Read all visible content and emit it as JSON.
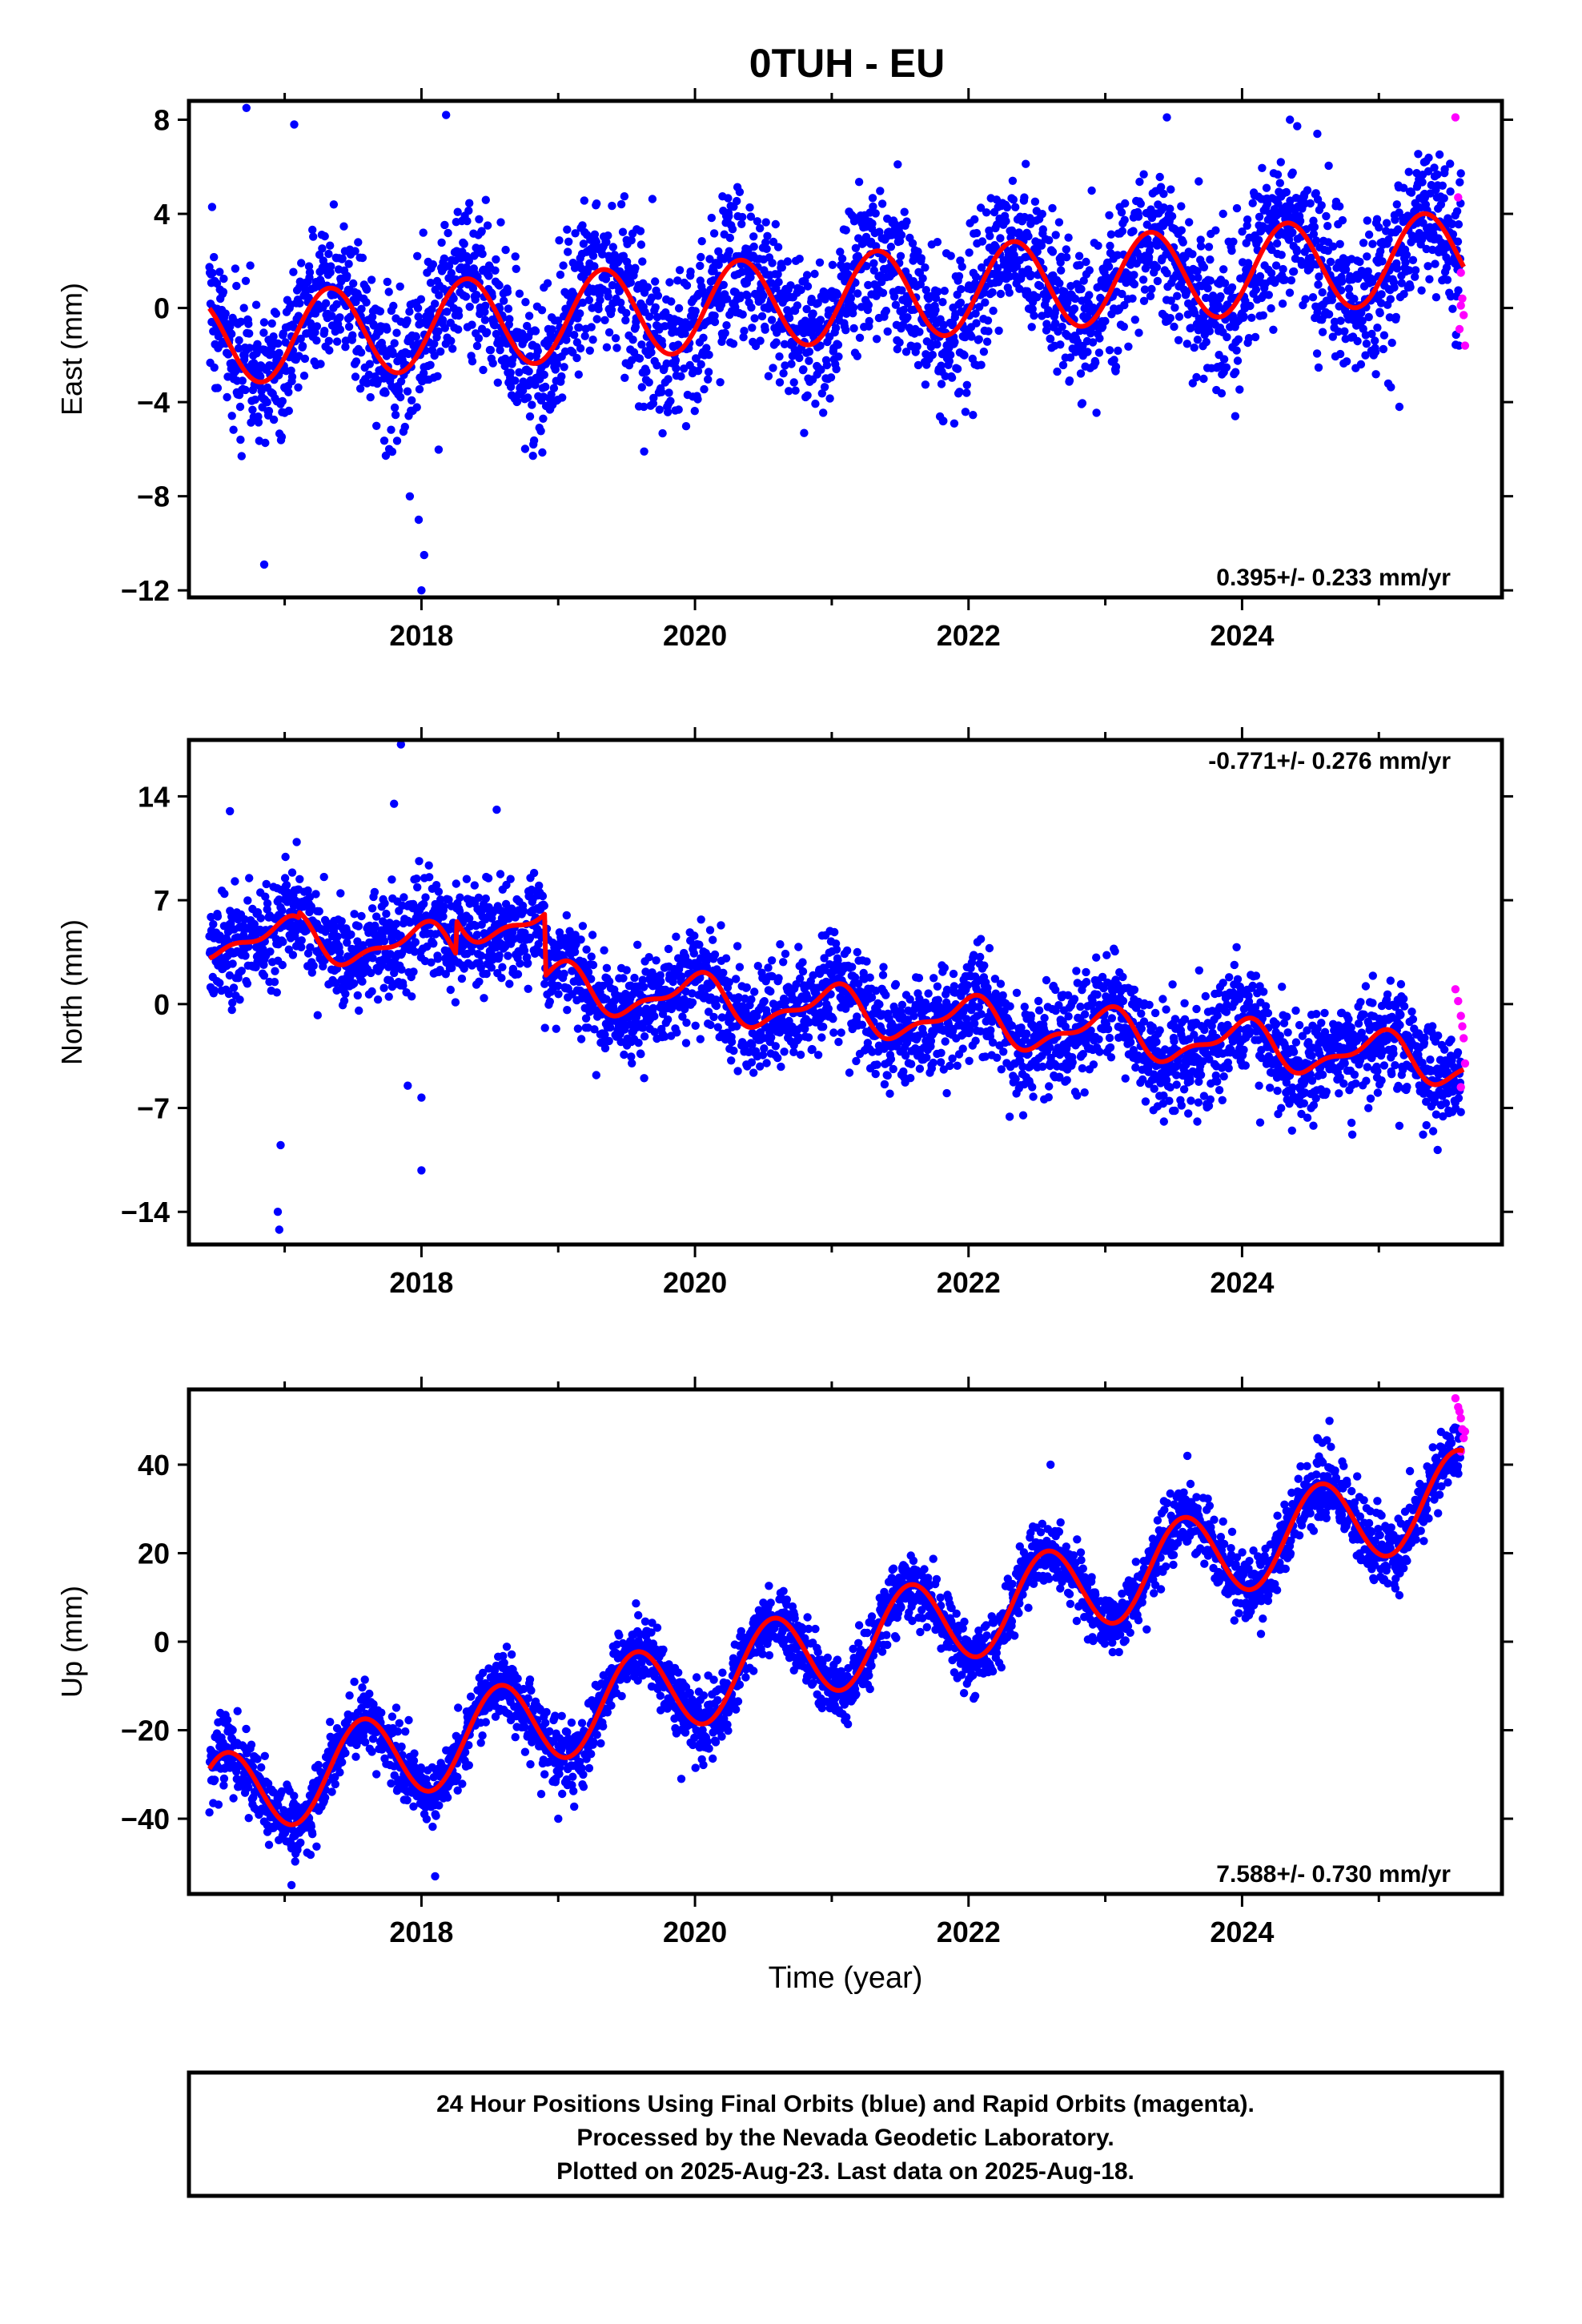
{
  "title": "0TUH - EU",
  "x_axis_label": "Time (year)",
  "caption": {
    "line1": "24 Hour Positions Using Final Orbits (blue) and Rapid Orbits (magenta).",
    "line2": "Processed by the Nevada Geodetic Laboratory.",
    "line3": "Plotted on 2025-Aug-23. Last data on 2025-Aug-18."
  },
  "colors": {
    "final_orbits": "#0000ff",
    "rapid_orbits": "#ff00ff",
    "model_fit": "#ff0000"
  },
  "chart_data": [
    {
      "type": "scatter",
      "panel": "east",
      "title": "0TUH - EU",
      "xlabel": "",
      "ylabel": "East (mm)",
      "xlim": [
        2016.3,
        2025.9
      ],
      "ylim": [
        -12.3,
        8.8
      ],
      "x_ticks": [
        2018,
        2020,
        2022,
        2024
      ],
      "y_ticks": [
        -12,
        -8,
        -4,
        0,
        4,
        8
      ],
      "rate_label": "0.395+/- 0.233 mm/yr",
      "rate_position": "bottom-right",
      "model": {
        "start": 2016.45,
        "end": 2025.62,
        "offset": -1.4,
        "slope": 0.395,
        "annual_amp": 1.9,
        "annual_phase_year": 0.33,
        "semiannual_amp": 0.0,
        "semiannual_phase_year": 0.0,
        "steps": [],
        "scatter_sd": 1.6
      },
      "outliers": [
        [
          2016.72,
          8.5
        ],
        [
          2016.85,
          -10.9
        ],
        [
          2017.07,
          7.8
        ],
        [
          2018.0,
          -12.0
        ],
        [
          2018.02,
          -10.5
        ],
        [
          2017.98,
          -9.0
        ],
        [
          2018.18,
          8.2
        ],
        [
          2023.45,
          8.1
        ],
        [
          2024.35,
          8.0
        ],
        [
          2024.55,
          7.4
        ],
        [
          2023.95,
          -4.6
        ],
        [
          2025.15,
          -4.2
        ]
      ],
      "rapid_orbit_points": [
        [
          2025.56,
          8.1
        ],
        [
          2025.58,
          4.7
        ],
        [
          2025.6,
          1.5
        ],
        [
          2025.61,
          0.4
        ],
        [
          2025.62,
          -0.3
        ],
        [
          2025.63,
          -1.6
        ],
        [
          2025.59,
          -0.9
        ],
        [
          2025.6,
          0.1
        ]
      ]
    },
    {
      "type": "scatter",
      "panel": "north",
      "xlabel": "",
      "ylabel": "North (mm)",
      "xlim": [
        2016.3,
        2025.9
      ],
      "ylim": [
        -16.2,
        17.8
      ],
      "x_ticks": [
        2018,
        2020,
        2022,
        2024
      ],
      "y_ticks": [
        -14,
        -7,
        0,
        7,
        14
      ],
      "rate_label": "-0.771+/- 0.276 mm/yr",
      "rate_position": "top-right",
      "model": {
        "start": 2016.45,
        "end": 2025.62,
        "offset": 4.6,
        "slope": -0.771,
        "annual_amp": 1.4,
        "annual_phase_year": 0.0,
        "semiannual_amp": 0.6,
        "semiannual_phase_year": 0.1,
        "steps": [
          [
            2017.1,
            0.4
          ],
          [
            2018.25,
            2.3
          ],
          [
            2018.9,
            -4.2
          ]
        ],
        "scatter_sd": 1.7
      },
      "outliers": [
        [
          2016.95,
          -14.0
        ],
        [
          2016.96,
          -15.2
        ],
        [
          2016.97,
          -9.5
        ],
        [
          2017.85,
          17.5
        ],
        [
          2017.8,
          13.5
        ],
        [
          2017.9,
          -5.5
        ],
        [
          2018.0,
          -6.3
        ],
        [
          2018.0,
          -11.2
        ],
        [
          2016.6,
          13.0
        ],
        [
          2018.55,
          13.1
        ],
        [
          2024.8,
          -8.0
        ],
        [
          2025.15,
          -8.2
        ]
      ],
      "rapid_orbit_points": [
        [
          2025.56,
          1.0
        ],
        [
          2025.58,
          0.2
        ],
        [
          2025.6,
          -0.8
        ],
        [
          2025.62,
          -2.3
        ],
        [
          2025.63,
          -4.0
        ],
        [
          2025.6,
          -5.6
        ],
        [
          2025.61,
          -1.5
        ]
      ]
    },
    {
      "type": "scatter",
      "panel": "up",
      "xlabel": "Time (year)",
      "ylabel": "Up (mm)",
      "xlim": [
        2016.3,
        2025.9
      ],
      "ylim": [
        -57,
        57
      ],
      "x_ticks": [
        2018,
        2020,
        2022,
        2024
      ],
      "y_ticks": [
        -40,
        -20,
        0,
        20,
        40
      ],
      "rate_label": "7.588+/- 0.730 mm/yr",
      "rate_position": "bottom-right",
      "model": {
        "start": 2016.45,
        "end": 2025.62,
        "offset": -36.0,
        "slope": 7.588,
        "annual_amp": 10.0,
        "annual_phase_year": 0.57,
        "semiannual_amp": 0.0,
        "semiannual_phase_year": 0.0,
        "steps": [],
        "scatter_sd": 3.8
      },
      "outliers": [
        [
          2017.05,
          -55.0
        ],
        [
          2018.1,
          -53.0
        ],
        [
          2019.0,
          -40.0
        ],
        [
          2022.6,
          40.0
        ],
        [
          2023.6,
          42.0
        ],
        [
          2024.55,
          46.0
        ],
        [
          2025.15,
          10.5
        ],
        [
          2019.9,
          -31.0
        ]
      ],
      "rapid_orbit_points": [
        [
          2025.56,
          55.0
        ],
        [
          2025.58,
          53.0
        ],
        [
          2025.6,
          50.5
        ],
        [
          2025.61,
          48.0
        ],
        [
          2025.62,
          46.0
        ],
        [
          2025.6,
          43.0
        ],
        [
          2025.63,
          47.5
        ],
        [
          2025.59,
          52.0
        ]
      ]
    }
  ]
}
